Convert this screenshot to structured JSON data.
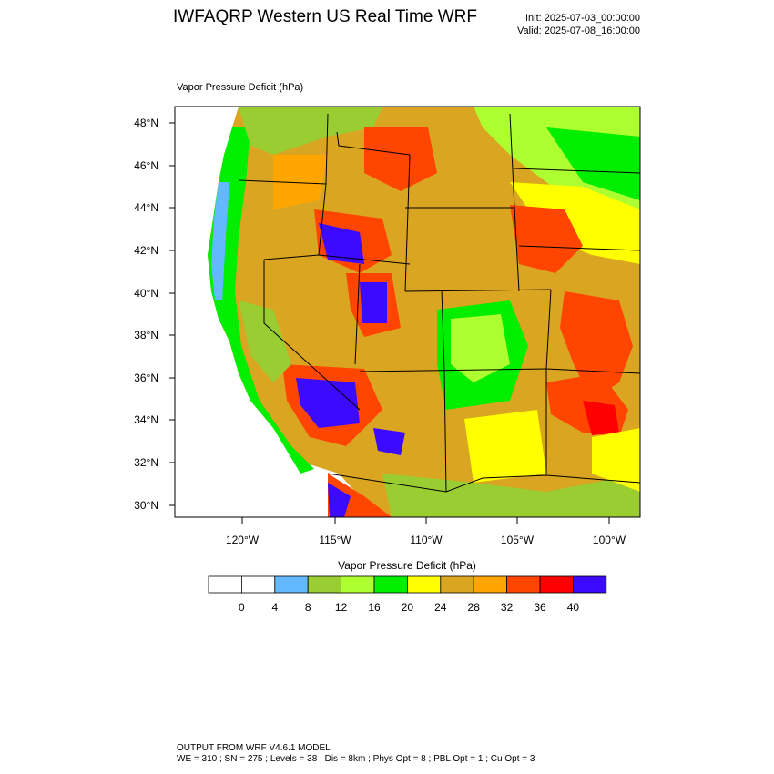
{
  "header": {
    "title": "IWFAQRP Western US Real Time WRF",
    "init": "Init: 2025-07-03_00:00:00",
    "valid": "Valid: 2025-07-08_16:00:00"
  },
  "plot": {
    "label": "Vapor Pressure Deficit   (hPa)",
    "lat_labels": [
      "48°N",
      "46°N",
      "44°N",
      "42°N",
      "40°N",
      "38°N",
      "36°N",
      "34°N",
      "32°N",
      "30°N"
    ],
    "lon_labels": [
      "120°W",
      "115°W",
      "110°W",
      "105°W",
      "100°W"
    ]
  },
  "legend": {
    "title": "Vapor Pressure Deficit  (hPa)",
    "colors": [
      "#ffffff",
      "#ffffff",
      "#63b8ff",
      "#9acd32",
      "#adff2f",
      "#00ee00",
      "#ffff00",
      "#daa520",
      "#ffa500",
      "#ff4500",
      "#ff0000",
      "#3b0aff"
    ],
    "ticks": [
      "0",
      "4",
      "8",
      "12",
      "16",
      "20",
      "24",
      "28",
      "32",
      "36",
      "40"
    ]
  },
  "footer": {
    "line1": "OUTPUT FROM WRF V4.6.1 MODEL",
    "line2": "WE = 310 ; SN = 275 ; Levels = 38 ; Dis = 8km ; Phys Opt = 8 ; PBL Opt = 1 ; Cu Opt = 3"
  }
}
